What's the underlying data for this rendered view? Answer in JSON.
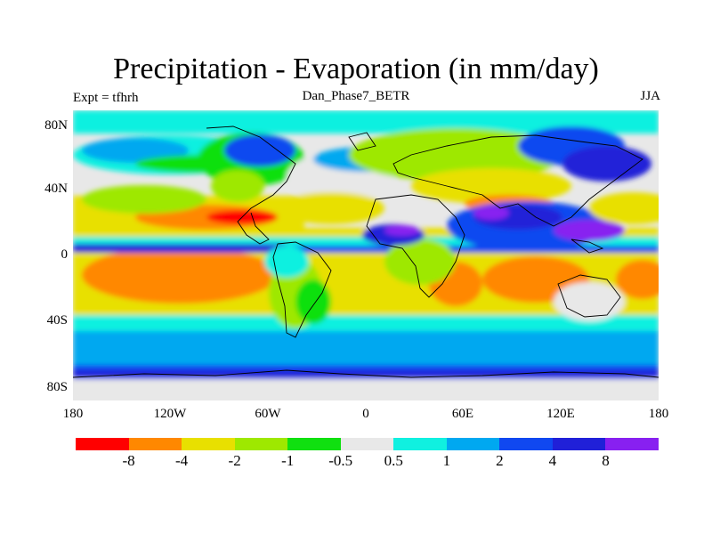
{
  "title": "Precipitation - Evaporation (in mm/day)",
  "subtitle_left": "Expt = tfhrh",
  "subtitle_center": "Dan_Phase7_BETR",
  "subtitle_right": "JJA",
  "lat_ticks": [
    "80N",
    "40N",
    "0",
    "40S",
    "80S"
  ],
  "lon_ticks": [
    "180",
    "120W",
    "60W",
    "0",
    "60E",
    "120E",
    "180"
  ],
  "colorbar": {
    "colors": [
      "#ff0000",
      "#ff8800",
      "#e8e000",
      "#9ee800",
      "#10e010",
      "#e8e8e8",
      "#10f0e0",
      "#00a8f0",
      "#1048f0",
      "#2020d8",
      "#8820f0"
    ],
    "labels": [
      "-8",
      "-4",
      "-2",
      "-1",
      "-0.5",
      "0.5",
      "1",
      "2",
      "4",
      "8"
    ]
  }
}
